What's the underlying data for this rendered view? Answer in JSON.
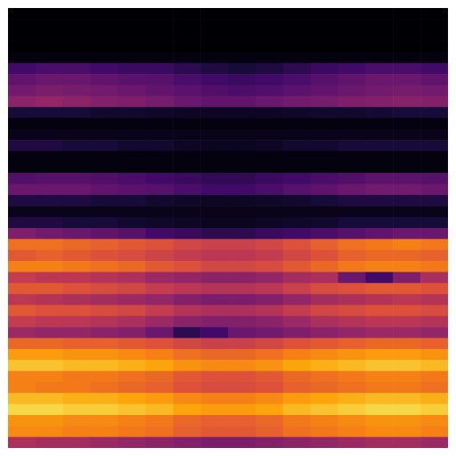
{
  "chart_data": {
    "type": "heatmap",
    "tick_labels": false,
    "zlim": [
      0,
      1
    ],
    "cells": [
      [
        0,
        0,
        0,
        0,
        0,
        0,
        0,
        0,
        0,
        0,
        0,
        0,
        0,
        0,
        0,
        0
      ],
      [
        0,
        0,
        0,
        0,
        0,
        0,
        0,
        0,
        0,
        0,
        0,
        0,
        0,
        0,
        0,
        0
      ],
      [
        0,
        0,
        0,
        0,
        0,
        0,
        0,
        0,
        0,
        0,
        0,
        0,
        0,
        0,
        0,
        0
      ],
      [
        0,
        0,
        0,
        0,
        0,
        0,
        0,
        0,
        0,
        0,
        0,
        0,
        0,
        0,
        0,
        0
      ],
      [
        0.02,
        0.02,
        0.02,
        0.02,
        0.02,
        0.02,
        0.02,
        0.02,
        0.02,
        0.02,
        0.02,
        0.02,
        0.02,
        0.02,
        0.02,
        0.02
      ],
      [
        0.2,
        0.22,
        0.22,
        0.2,
        0.18,
        0.18,
        0.15,
        0.12,
        0.1,
        0.12,
        0.15,
        0.18,
        0.2,
        0.22,
        0.22,
        0.2
      ],
      [
        0.28,
        0.3,
        0.3,
        0.28,
        0.26,
        0.25,
        0.22,
        0.2,
        0.18,
        0.2,
        0.22,
        0.25,
        0.28,
        0.3,
        0.3,
        0.28
      ],
      [
        0.32,
        0.34,
        0.33,
        0.32,
        0.3,
        0.28,
        0.26,
        0.24,
        0.22,
        0.24,
        0.26,
        0.28,
        0.3,
        0.32,
        0.33,
        0.32
      ],
      [
        0.38,
        0.4,
        0.38,
        0.36,
        0.35,
        0.33,
        0.3,
        0.28,
        0.28,
        0.3,
        0.32,
        0.33,
        0.35,
        0.36,
        0.37,
        0.36
      ],
      [
        0.1,
        0.1,
        0.1,
        0.08,
        0.08,
        0.07,
        0.06,
        0.06,
        0.06,
        0.06,
        0.07,
        0.08,
        0.08,
        0.09,
        0.1,
        0.1
      ],
      [
        0.02,
        0.02,
        0.02,
        0.02,
        0.02,
        0.02,
        0.02,
        0.02,
        0.02,
        0.02,
        0.02,
        0.02,
        0.02,
        0.02,
        0.02,
        0.02
      ],
      [
        0.04,
        0.04,
        0.04,
        0.04,
        0.04,
        0.04,
        0.04,
        0.04,
        0.04,
        0.04,
        0.04,
        0.04,
        0.04,
        0.04,
        0.04,
        0.04
      ],
      [
        0.12,
        0.12,
        0.1,
        0.1,
        0.08,
        0.08,
        0.06,
        0.05,
        0.05,
        0.06,
        0.08,
        0.08,
        0.1,
        0.1,
        0.1,
        0.1
      ],
      [
        0.02,
        0.02,
        0.02,
        0.02,
        0.02,
        0.02,
        0.02,
        0.02,
        0.02,
        0.02,
        0.02,
        0.02,
        0.02,
        0.02,
        0.02,
        0.02
      ],
      [
        0.02,
        0.02,
        0.02,
        0.02,
        0.02,
        0.02,
        0.02,
        0.02,
        0.02,
        0.02,
        0.02,
        0.02,
        0.02,
        0.02,
        0.02,
        0.02
      ],
      [
        0.24,
        0.25,
        0.25,
        0.24,
        0.22,
        0.2,
        0.18,
        0.16,
        0.16,
        0.18,
        0.2,
        0.22,
        0.24,
        0.26,
        0.26,
        0.25
      ],
      [
        0.3,
        0.3,
        0.3,
        0.28,
        0.26,
        0.25,
        0.22,
        0.2,
        0.2,
        0.22,
        0.25,
        0.27,
        0.3,
        0.32,
        0.32,
        0.3
      ],
      [
        0.12,
        0.12,
        0.12,
        0.1,
        0.1,
        0.08,
        0.07,
        0.06,
        0.06,
        0.07,
        0.08,
        0.1,
        0.12,
        0.12,
        0.12,
        0.12
      ],
      [
        0.04,
        0.04,
        0.04,
        0.04,
        0.04,
        0.04,
        0.04,
        0.04,
        0.04,
        0.04,
        0.04,
        0.04,
        0.04,
        0.04,
        0.04,
        0.04
      ],
      [
        0.12,
        0.12,
        0.1,
        0.1,
        0.08,
        0.07,
        0.06,
        0.05,
        0.05,
        0.06,
        0.07,
        0.08,
        0.1,
        0.1,
        0.1,
        0.1
      ],
      [
        0.35,
        0.32,
        0.3,
        0.28,
        0.25,
        0.2,
        0.18,
        0.15,
        0.15,
        0.18,
        0.2,
        0.22,
        0.25,
        0.28,
        0.3,
        0.3
      ],
      [
        0.68,
        0.68,
        0.66,
        0.64,
        0.62,
        0.6,
        0.56,
        0.54,
        0.54,
        0.56,
        0.6,
        0.64,
        0.68,
        0.7,
        0.72,
        0.7
      ],
      [
        0.62,
        0.64,
        0.62,
        0.6,
        0.58,
        0.55,
        0.52,
        0.5,
        0.5,
        0.52,
        0.56,
        0.6,
        0.64,
        0.66,
        0.66,
        0.64
      ],
      [
        0.72,
        0.72,
        0.7,
        0.68,
        0.66,
        0.62,
        0.6,
        0.56,
        0.56,
        0.58,
        0.62,
        0.66,
        0.7,
        0.72,
        0.72,
        0.7
      ],
      [
        0.52,
        0.5,
        0.5,
        0.48,
        0.46,
        0.42,
        0.4,
        0.38,
        0.38,
        0.4,
        0.44,
        0.46,
        0.3,
        0.2,
        0.35,
        0.45
      ],
      [
        0.62,
        0.62,
        0.6,
        0.58,
        0.56,
        0.52,
        0.5,
        0.48,
        0.48,
        0.5,
        0.54,
        0.58,
        0.6,
        0.62,
        0.62,
        0.6
      ],
      [
        0.5,
        0.48,
        0.46,
        0.44,
        0.42,
        0.4,
        0.36,
        0.34,
        0.34,
        0.36,
        0.4,
        0.44,
        0.46,
        0.48,
        0.5,
        0.48
      ],
      [
        0.62,
        0.6,
        0.6,
        0.58,
        0.56,
        0.52,
        0.48,
        0.46,
        0.46,
        0.48,
        0.52,
        0.56,
        0.58,
        0.6,
        0.6,
        0.58
      ],
      [
        0.52,
        0.5,
        0.5,
        0.48,
        0.46,
        0.42,
        0.38,
        0.36,
        0.36,
        0.38,
        0.42,
        0.46,
        0.48,
        0.5,
        0.5,
        0.48
      ],
      [
        0.42,
        0.4,
        0.4,
        0.38,
        0.36,
        0.3,
        0.15,
        0.2,
        0.3,
        0.32,
        0.35,
        0.38,
        0.4,
        0.42,
        0.42,
        0.4
      ],
      [
        0.66,
        0.66,
        0.64,
        0.64,
        0.62,
        0.6,
        0.56,
        0.54,
        0.54,
        0.56,
        0.6,
        0.62,
        0.64,
        0.66,
        0.66,
        0.64
      ],
      [
        0.78,
        0.78,
        0.76,
        0.76,
        0.74,
        0.72,
        0.68,
        0.66,
        0.66,
        0.68,
        0.72,
        0.74,
        0.76,
        0.78,
        0.78,
        0.76
      ],
      [
        0.86,
        0.86,
        0.84,
        0.84,
        0.82,
        0.8,
        0.76,
        0.74,
        0.74,
        0.76,
        0.8,
        0.82,
        0.84,
        0.86,
        0.86,
        0.84
      ],
      [
        0.72,
        0.72,
        0.7,
        0.7,
        0.68,
        0.66,
        0.62,
        0.6,
        0.6,
        0.62,
        0.66,
        0.68,
        0.7,
        0.72,
        0.72,
        0.7
      ],
      [
        0.72,
        0.7,
        0.7,
        0.68,
        0.66,
        0.64,
        0.6,
        0.58,
        0.58,
        0.6,
        0.64,
        0.66,
        0.68,
        0.7,
        0.7,
        0.68
      ],
      [
        0.84,
        0.84,
        0.82,
        0.82,
        0.8,
        0.78,
        0.74,
        0.72,
        0.72,
        0.74,
        0.78,
        0.8,
        0.82,
        0.84,
        0.84,
        0.82
      ],
      [
        0.9,
        0.9,
        0.88,
        0.88,
        0.86,
        0.84,
        0.8,
        0.78,
        0.78,
        0.8,
        0.84,
        0.86,
        0.88,
        0.9,
        0.9,
        0.88
      ],
      [
        0.76,
        0.76,
        0.74,
        0.74,
        0.72,
        0.7,
        0.66,
        0.64,
        0.64,
        0.66,
        0.7,
        0.72,
        0.74,
        0.76,
        0.76,
        0.74
      ],
      [
        0.74,
        0.74,
        0.72,
        0.72,
        0.7,
        0.68,
        0.64,
        0.62,
        0.62,
        0.64,
        0.68,
        0.7,
        0.72,
        0.74,
        0.74,
        0.72
      ],
      [
        0.46,
        0.44,
        0.44,
        0.42,
        0.4,
        0.38,
        0.36,
        0.34,
        0.34,
        0.36,
        0.38,
        0.4,
        0.42,
        0.44,
        0.44,
        0.42
      ]
    ]
  }
}
